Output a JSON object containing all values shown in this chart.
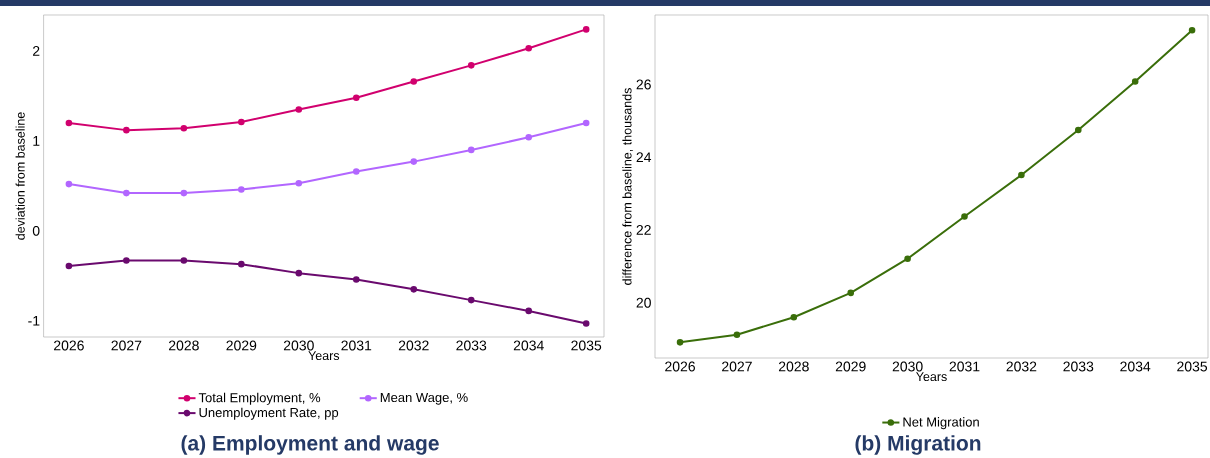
{
  "chart_data": [
    {
      "type": "line",
      "title": "(a) Employment and wage",
      "xlabel": "Years",
      "ylabel": "deviation from baseline",
      "x": [
        2026,
        2027,
        2028,
        2029,
        2030,
        2031,
        2032,
        2033,
        2034,
        2035
      ],
      "series": [
        {
          "name": "Total Employment, %",
          "color": "#d1006e",
          "values": [
            1.2,
            1.12,
            1.14,
            1.21,
            1.35,
            1.48,
            1.66,
            1.84,
            2.03,
            2.24
          ]
        },
        {
          "name": "Mean Wage, %",
          "color": "#b266ff",
          "values": [
            0.52,
            0.42,
            0.42,
            0.46,
            0.53,
            0.66,
            0.77,
            0.9,
            1.04,
            1.2
          ]
        },
        {
          "name": "Unemployment Rate, pp",
          "color": "#6a0a6e",
          "values": [
            -0.39,
            -0.33,
            -0.33,
            -0.37,
            -0.47,
            -0.54,
            -0.65,
            -0.77,
            -0.89,
            -1.03
          ]
        }
      ],
      "xlim": [
        2025.56,
        2035.31
      ],
      "ylim": [
        -1.18,
        2.4
      ],
      "xticks": [
        2026,
        2027,
        2028,
        2029,
        2030,
        2031,
        2032,
        2033,
        2034,
        2035
      ],
      "yticks": [
        -1,
        0,
        1,
        2
      ],
      "grid": false,
      "legend": "bottom",
      "marker": "circle",
      "line_style": "solid"
    },
    {
      "type": "line",
      "title": "(b) Migration",
      "xlabel": "Years",
      "ylabel": "difference from baseline, thousands",
      "x": [
        2026,
        2027,
        2028,
        2029,
        2030,
        2031,
        2032,
        2033,
        2034,
        2035
      ],
      "series": [
        {
          "name": "Net Migration",
          "color": "#3a6e0a",
          "values": [
            18.91,
            19.12,
            19.6,
            20.27,
            21.21,
            22.37,
            23.51,
            24.75,
            26.08,
            27.49
          ]
        }
      ],
      "xlim": [
        2025.56,
        2035.28
      ],
      "ylim": [
        18.48,
        27.91
      ],
      "xticks": [
        2026,
        2027,
        2028,
        2029,
        2030,
        2031,
        2032,
        2033,
        2034,
        2035
      ],
      "yticks": [
        20,
        22,
        24,
        26
      ],
      "grid": false,
      "legend": "bottom",
      "marker": "circle",
      "line_style": "solid"
    }
  ]
}
